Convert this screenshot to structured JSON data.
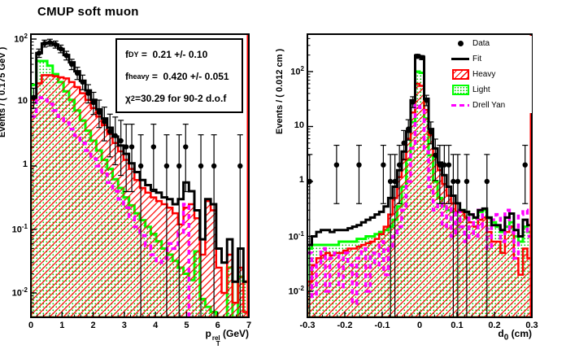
{
  "title": "CMUP soft muon",
  "colors": {
    "data": "#000000",
    "fit": "#000000",
    "heavy": "#ff0000",
    "heavy_hatch": "#ff0000",
    "light": "#00ff00",
    "light_dots": "#00cc00",
    "drell_yan": "#ff00ff",
    "frame": "#000000",
    "background": "#ffffff"
  },
  "stats": {
    "lines": [
      {
        "base": "f",
        "sub": "DY",
        "rest": " =  0.21 +/- 0.10"
      },
      {
        "base": "f",
        "sub": "heavy",
        "rest": " =  0.420 +/- 0.051"
      },
      {
        "base": "χ",
        "sup": "2",
        "rest": "=30.29 for 90-2 d.o.f"
      }
    ]
  },
  "legend": {
    "items": [
      {
        "label": "Data",
        "marker": "black-dot"
      },
      {
        "label": "Fit",
        "marker": "black-line"
      },
      {
        "label": "Heavy",
        "marker": "red-hatched-box"
      },
      {
        "label": "Light",
        "marker": "green-dotted-box"
      },
      {
        "label": "Drell Yan",
        "marker": "magenta-dashed-line"
      }
    ]
  },
  "chart_data": [
    {
      "type": "bar",
      "panel": "left",
      "xlabel": "p_T^rel (GeV)",
      "xlabel_parts": {
        "base": "p",
        "sub": "T",
        "sup": "rel",
        "rest": " (GeV)"
      },
      "ylabel": "Events / ( 0.175 GeV )",
      "yscale": "log",
      "xlim": [
        0,
        7
      ],
      "ylim": [
        0.004,
        120
      ],
      "bin_width": 0.175,
      "x_ticks": [
        0,
        1,
        2,
        3,
        4,
        5,
        6,
        7
      ],
      "x_tick_labels": [
        "0",
        "1",
        "2",
        "3",
        "4",
        "5",
        "6",
        "7"
      ],
      "x_minor_step": 0.2,
      "x_major_step": 1,
      "y_ticks": [
        {
          "base": "10",
          "exp": "2",
          "value": 100
        },
        {
          "base": "10",
          "exp": "",
          "value": 10
        },
        {
          "base": "1",
          "exp": "",
          "value": 1
        },
        {
          "base": "10",
          "exp": "-1",
          "value": 0.1
        },
        {
          "base": "10",
          "exp": "-2",
          "value": 0.01
        }
      ],
      "series": [
        {
          "name": "Light",
          "style": "green-dotted-fill",
          "bins": [
            19,
            45,
            45,
            38,
            28,
            21,
            15,
            11,
            7.5,
            5.2,
            3.6,
            2.5,
            1.75,
            1.25,
            0.9,
            0.62,
            0.45,
            0.32,
            0.24,
            0.18,
            0.14,
            0.11,
            0.085,
            0.065,
            0.05,
            0.04,
            0.032,
            0.025,
            0.02,
            0.016,
            0.045,
            0.008,
            0.006,
            0.005,
            0.004,
            0.004,
            0.025,
            0.004,
            0.018,
            0.015
          ]
        },
        {
          "name": "Heavy",
          "style": "red-hatched-fill",
          "bins": [
            11,
            20,
            27,
            27,
            26,
            25,
            24,
            21,
            17.5,
            14,
            11,
            8.2,
            6,
            4.4,
            3.2,
            2.3,
            1.7,
            1.25,
            0.9,
            0.6,
            0.45,
            0.38,
            0.32,
            0.28,
            0.25,
            0.22,
            0.18,
            0.12,
            0.22,
            0.25,
            0.15,
            0.04,
            0.28,
            0.2,
            0.025,
            0.01,
            0.04,
            0.007,
            0.025,
            0.005
          ]
        },
        {
          "name": "Drell Yan",
          "style": "magenta-dashed-line",
          "bins": [
            6,
            12,
            11,
            9.5,
            7.5,
            6,
            4.8,
            3.8,
            3,
            2.3,
            1.75,
            1.3,
            1,
            0.75,
            0.55,
            0.4,
            0.3,
            0.22,
            0.16,
            0.11,
            0.08,
            0.055,
            0.04,
            0.03,
            0.035,
            0.06,
            0.05,
            0.09,
            0.25,
            0.003,
            0.003,
            0.003,
            0.003,
            0.003,
            0.003,
            0.003,
            0.003,
            0.003,
            0.003,
            0.003
          ]
        },
        {
          "name": "Fit",
          "style": "black-step-line",
          "bins": [
            12,
            60,
            85,
            88,
            82,
            70,
            56,
            43,
            31,
            22,
            15.5,
            11,
            7.8,
            5.6,
            4,
            2.9,
            2.1,
            1.55,
            1.1,
            0.8,
            0.6,
            0.5,
            0.42,
            0.38,
            0.32,
            0.3,
            0.25,
            0.3,
            0.55,
            0.4,
            0.2,
            0.07,
            0.3,
            0.25,
            0.05,
            0.03,
            0.07,
            0.015,
            0.05,
            0.015
          ]
        }
      ],
      "data_points": [
        [
          0.09,
          12
        ],
        [
          0.26,
          60
        ],
        [
          0.44,
          85
        ],
        [
          0.61,
          88
        ],
        [
          0.79,
          82
        ],
        [
          0.96,
          70
        ],
        [
          1.14,
          55
        ],
        [
          1.31,
          40
        ],
        [
          1.49,
          29
        ],
        [
          1.66,
          21
        ],
        [
          1.84,
          14
        ],
        [
          2.01,
          10
        ],
        [
          2.19,
          7
        ],
        [
          2.36,
          5
        ],
        [
          2.54,
          3.5
        ],
        [
          2.71,
          3
        ],
        [
          2.89,
          2.5
        ],
        [
          3.06,
          2
        ],
        [
          3.24,
          2
        ],
        [
          3.53,
          1
        ],
        [
          3.94,
          2
        ],
        [
          4.36,
          1
        ],
        [
          4.76,
          1
        ],
        [
          4.97,
          2
        ],
        [
          5.46,
          1
        ],
        [
          5.88,
          1
        ],
        [
          6.72,
          1
        ]
      ]
    },
    {
      "type": "bar",
      "panel": "right",
      "xlabel": "d_0 (cm)",
      "xlabel_parts": {
        "base": "d",
        "sub": "0",
        "rest": " (cm)"
      },
      "ylabel": "Events / ( 0.012 cm )",
      "yscale": "log",
      "xlim": [
        -0.3,
        0.3
      ],
      "ylim": [
        0.0034,
        480
      ],
      "bin_width": 0.012,
      "x_ticks": [
        -0.3,
        -0.2,
        -0.1,
        0,
        0.1,
        0.2,
        0.3
      ],
      "x_tick_labels": [
        "-0.3",
        "-0.2",
        "-0.1",
        "0",
        "0.1",
        "0.2",
        "0.3"
      ],
      "x_minor_step": 0.02,
      "x_major_step": 0.1,
      "y_ticks": [
        {
          "base": "10",
          "exp": "2",
          "value": 100
        },
        {
          "base": "10",
          "exp": "",
          "value": 10
        },
        {
          "base": "1",
          "exp": "",
          "value": 1
        },
        {
          "base": "10",
          "exp": "-1",
          "value": 0.1
        },
        {
          "base": "10",
          "exp": "-2",
          "value": 0.01
        }
      ],
      "series": [
        {
          "name": "Light",
          "style": "green-dotted-fill",
          "bins": [
            0.06,
            0.07,
            0.07,
            0.07,
            0.07,
            0.07,
            0.07,
            0.08,
            0.08,
            0.08,
            0.08,
            0.09,
            0.09,
            0.1,
            0.1,
            0.11,
            0.12,
            0.13,
            0.15,
            0.2,
            0.35,
            0.8,
            2.5,
            12,
            100,
            95,
            14,
            3,
            1,
            0.5,
            0.35,
            0.3,
            0.28,
            0.28,
            0.3,
            0.28,
            0.25,
            0.22,
            0.28,
            0.3,
            0.22,
            0.18,
            0.15,
            0.12,
            0.15,
            0.18,
            0.1,
            0.08,
            0.15,
            0.12
          ]
        },
        {
          "name": "Heavy",
          "style": "red-hatched-fill",
          "bins": [
            0.015,
            0.03,
            0.04,
            0.045,
            0.05,
            0.045,
            0.05,
            0.05,
            0.055,
            0.06,
            0.06,
            0.065,
            0.07,
            0.075,
            0.08,
            0.09,
            0.11,
            0.15,
            0.25,
            0.5,
            1.2,
            2.5,
            6,
            18,
            60,
            55,
            20,
            7,
            3,
            1.6,
            0.9,
            0.55,
            0.4,
            0.28,
            0.28,
            0.22,
            0.18,
            0.15,
            0.2,
            0.22,
            0.12,
            0.08,
            0.08,
            0.05,
            0.12,
            0.15,
            0.04,
            0.02,
            0.06,
            0.04
          ]
        },
        {
          "name": "Drell Yan",
          "style": "magenta-dashed-line",
          "bins": [
            0.05,
            0.008,
            0.03,
            0.06,
            0.01,
            0.04,
            0.05,
            0.012,
            0.05,
            0.03,
            0.006,
            0.04,
            0.06,
            0.01,
            0.05,
            0.03,
            0.08,
            0.02,
            0.06,
            0.1,
            0.15,
            0.3,
            1,
            4,
            25,
            22,
            3.5,
            0.8,
            0.3,
            0.4,
            0.15,
            0.35,
            0.1,
            0.3,
            0.15,
            0.08,
            0.25,
            0.1,
            0.3,
            0.15,
            0.06,
            0.2,
            0.25,
            0.08,
            0.3,
            0.12,
            0.04,
            0.25,
            0.3,
            0.1
          ]
        },
        {
          "name": "Fit",
          "style": "black-step-line",
          "bins": [
            0.07,
            0.1,
            0.12,
            0.13,
            0.13,
            0.12,
            0.13,
            0.13,
            0.13,
            0.14,
            0.15,
            0.16,
            0.18,
            0.2,
            0.22,
            0.25,
            0.28,
            0.35,
            0.5,
            0.8,
            1.6,
            3.5,
            8,
            30,
            195,
            185,
            32,
            9,
            4,
            2.2,
            1.3,
            0.8,
            0.55,
            0.4,
            0.3,
            0.28,
            0.25,
            0.22,
            0.3,
            0.32,
            0.22,
            0.16,
            0.16,
            0.13,
            0.22,
            0.26,
            0.13,
            0.1,
            0.2,
            0.16
          ]
        }
      ],
      "data_points": [
        [
          -0.294,
          1
        ],
        [
          -0.222,
          2
        ],
        [
          -0.162,
          2
        ],
        [
          -0.097,
          2
        ],
        [
          -0.078,
          1
        ],
        [
          -0.066,
          1
        ],
        [
          -0.054,
          2
        ],
        [
          -0.042,
          5
        ],
        [
          -0.03,
          9
        ],
        [
          -0.018,
          28
        ],
        [
          -0.006,
          190
        ],
        [
          0.006,
          180
        ],
        [
          0.018,
          30
        ],
        [
          0.03,
          8
        ],
        [
          0.042,
          3
        ],
        [
          0.054,
          2
        ],
        [
          0.066,
          2
        ],
        [
          0.078,
          2
        ],
        [
          0.09,
          1
        ],
        [
          0.102,
          1
        ],
        [
          0.126,
          1
        ],
        [
          0.18,
          1
        ],
        [
          0.282,
          2
        ]
      ]
    }
  ]
}
